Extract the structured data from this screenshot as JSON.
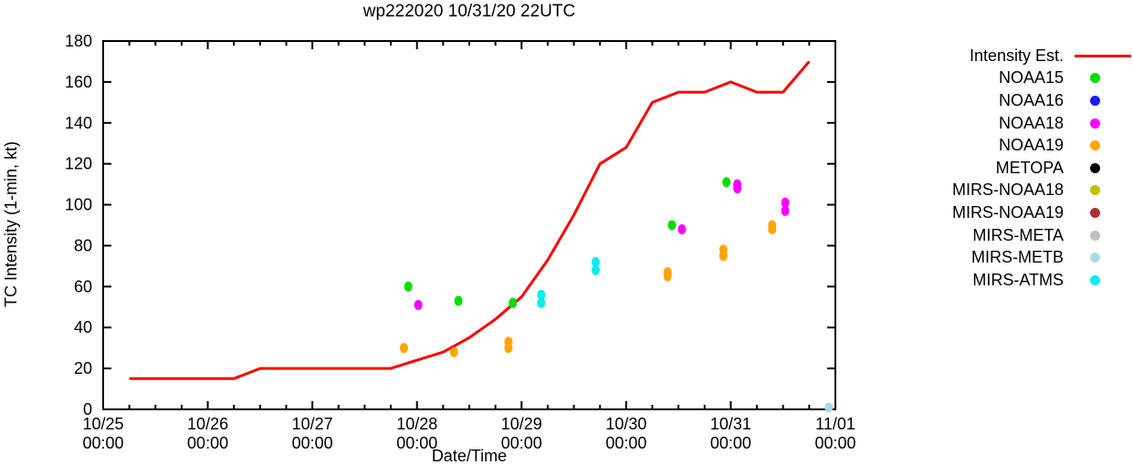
{
  "chart_data": {
    "type": "line",
    "title": "wp222020 10/31/20 22UTC",
    "xlabel": "Date/Time",
    "ylabel": "TC Intensity (1-min, kt)",
    "x_axis": {
      "unit": "hours since 10/25 00:00",
      "range_hours": [
        0,
        168
      ],
      "major_tick_every_hours": 24,
      "minor_tick_every_hours": 6,
      "tick_labels": [
        [
          "10/25",
          "00:00"
        ],
        [
          "10/26",
          "00:00"
        ],
        [
          "10/27",
          "00:00"
        ],
        [
          "10/28",
          "00:00"
        ],
        [
          "10/29",
          "00:00"
        ],
        [
          "10/30",
          "00:00"
        ],
        [
          "10/31",
          "00:00"
        ],
        [
          "11/01",
          "00:00"
        ]
      ]
    },
    "y_axis": {
      "range": [
        0,
        180
      ],
      "tick_step": 20,
      "tick_labels": [
        "0",
        "20",
        "40",
        "60",
        "80",
        "100",
        "120",
        "140",
        "160",
        "180"
      ]
    },
    "grid": "off",
    "legend_position": "right-outside",
    "line_series": {
      "name": "Intensity Est.",
      "color": "#ff0000",
      "points_hours_kt": [
        [
          6,
          15
        ],
        [
          30,
          15
        ],
        [
          36,
          20
        ],
        [
          66,
          20
        ],
        [
          72,
          24
        ],
        [
          78,
          28
        ],
        [
          84,
          35
        ],
        [
          90,
          44
        ],
        [
          96,
          55
        ],
        [
          102,
          73
        ],
        [
          108,
          95
        ],
        [
          114,
          120
        ],
        [
          120,
          128
        ],
        [
          126,
          150
        ],
        [
          132,
          155
        ],
        [
          138,
          155
        ],
        [
          144,
          160
        ],
        [
          150,
          155
        ],
        [
          156,
          155
        ],
        [
          162,
          170
        ]
      ]
    },
    "scatter_series": [
      {
        "name": "NOAA15",
        "color": "#00dd00",
        "points_hours_kt": [
          [
            70,
            60
          ],
          [
            81.5,
            53
          ],
          [
            94,
            52
          ],
          [
            130.5,
            90
          ],
          [
            143,
            111
          ]
        ]
      },
      {
        "name": "NOAA16",
        "color": "#1a1aff",
        "points_hours_kt": []
      },
      {
        "name": "NOAA18",
        "color": "#ff00ff",
        "points_hours_kt": [
          [
            72.3,
            51
          ],
          [
            132.8,
            88
          ],
          [
            145.5,
            110
          ],
          [
            145.5,
            108
          ],
          [
            156.5,
            101
          ],
          [
            156.5,
            97
          ]
        ]
      },
      {
        "name": "NOAA19",
        "color": "#ffa500",
        "points_hours_kt": [
          [
            69,
            30
          ],
          [
            80.5,
            28
          ],
          [
            93,
            33
          ],
          [
            93,
            30
          ],
          [
            129.5,
            67
          ],
          [
            129.5,
            65
          ],
          [
            142.3,
            78
          ],
          [
            142.3,
            75
          ],
          [
            153.5,
            90
          ],
          [
            153.5,
            88
          ]
        ]
      },
      {
        "name": "METOPA",
        "color": "#000000",
        "points_hours_kt": []
      },
      {
        "name": "MIRS-NOAA18",
        "color": "#c0c000",
        "points_hours_kt": []
      },
      {
        "name": "MIRS-NOAA19",
        "color": "#aa3030",
        "points_hours_kt": []
      },
      {
        "name": "MIRS-META",
        "color": "#c0c0c0",
        "points_hours_kt": []
      },
      {
        "name": "MIRS-METB",
        "color": "#add8e6",
        "points_hours_kt": [
          [
            166.5,
            1
          ]
        ]
      },
      {
        "name": "MIRS-ATMS",
        "color": "#00eeee",
        "points_hours_kt": [
          [
            100.5,
            56
          ],
          [
            100.5,
            52
          ],
          [
            113,
            72
          ],
          [
            113,
            68
          ]
        ]
      }
    ]
  }
}
